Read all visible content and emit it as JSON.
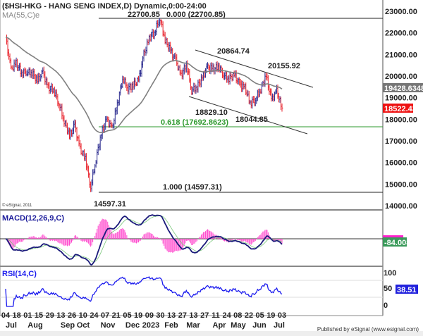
{
  "header": {
    "title": "($HSI-HKG - HANG SENG INDEX,D) Dynamic,0:00-24:00",
    "ma_label": "MA(55,C)e"
  },
  "annotations": {
    "fib_0": "22700.85   0.000 (22700.85)",
    "fib_618": "0.618 (17692.8623)",
    "fib_1": "1.000 (14597.31)",
    "high_label": "20864.74",
    "high2_label": "20155.92",
    "low1_label": "18829.10",
    "low2_label": "18044.85",
    "bottom_label": "14597.31",
    "copyright": "© eSignal, 2011"
  },
  "price_axis": {
    "ticks": [
      "23000.00",
      "22000.00",
      "21000.00",
      "20000.00",
      "19000.00",
      "18000.00",
      "17000.00",
      "16000.00",
      "15000.00",
      "14000.00"
    ],
    "ma_tag": "19428.6348",
    "last_tag": "18522.43"
  },
  "macd": {
    "label": "MACD(12,26,9,C)",
    "value_tag": "-84.008"
  },
  "rsi": {
    "label": "RSI(14,C)",
    "ticks": [
      "100",
      "50",
      "0"
    ],
    "value_tag": "38.51"
  },
  "x_axis": {
    "day_labels": [
      "04",
      "18",
      "01",
      "15",
      "29",
      "13",
      "26",
      "10",
      "24",
      "07",
      "21",
      "05",
      "19",
      "09",
      "30",
      "13",
      "27",
      "13",
      "27",
      "11",
      "24",
      "08",
      "22",
      "05",
      "19",
      "03"
    ],
    "month_labels": [
      "Jul",
      "Aug",
      "Sep",
      "Oct",
      "Nov",
      "Dec",
      "2023",
      "Feb",
      "Mar",
      "Apr",
      "May",
      "Jun",
      "Jul"
    ]
  },
  "footer": {
    "published": "Published by eSignal (www.esignal.com)"
  },
  "colors": {
    "up": "#2b2b8f",
    "down": "#e8202a",
    "ma": "#808080",
    "fib618": "#2e9a2e",
    "macd": "#1a1a7a",
    "hist": "#ff44cc",
    "rsi": "#1a1aee",
    "last_tag": "#ee1111"
  },
  "chart_data": {
    "type": "ohlc",
    "title": "($HSI-HKG - HANG SENG INDEX,D) Dynamic,0:00-24:00",
    "ylim": [
      14000,
      23400
    ],
    "x": [
      "2022-07-04",
      "2022-07-11",
      "2022-07-18",
      "2022-07-25",
      "2022-08-01",
      "2022-08-08",
      "2022-08-15",
      "2022-08-22",
      "2022-08-29",
      "2022-09-05",
      "2022-09-12",
      "2022-09-19",
      "2022-09-26",
      "2022-10-03",
      "2022-10-10",
      "2022-10-17",
      "2022-10-24",
      "2022-10-31",
      "2022-11-07",
      "2022-11-14",
      "2022-11-21",
      "2022-11-28",
      "2022-12-05",
      "2022-12-12",
      "2022-12-19",
      "2022-12-26",
      "2023-01-02",
      "2023-01-09",
      "2023-01-16",
      "2023-01-23",
      "2023-01-30",
      "2023-02-06",
      "2023-02-13",
      "2023-02-20",
      "2023-02-27",
      "2023-03-06",
      "2023-03-13",
      "2023-03-20",
      "2023-03-27",
      "2023-04-03",
      "2023-04-10",
      "2023-04-17",
      "2023-04-24",
      "2023-05-01",
      "2023-05-08",
      "2023-05-15",
      "2023-05-22",
      "2023-05-29",
      "2023-06-05",
      "2023-06-12",
      "2023-06-19",
      "2023-06-26",
      "2023-07-03"
    ],
    "close": [
      21800,
      20300,
      20600,
      20150,
      20200,
      20170,
      19770,
      20170,
      19450,
      19360,
      18760,
      17930,
      17220,
      17740,
      16590,
      16210,
      14860,
      16160,
      17330,
      17990,
      17570,
      18680,
      19900,
      19450,
      19590,
      19780,
      20990,
      21740,
      22040,
      22690,
      21660,
      21190,
      20720,
      20010,
      20570,
      19320,
      19520,
      19920,
      20400,
      20330,
      20440,
      20080,
      19890,
      20050,
      19630,
      19450,
      18750,
      18950,
      19390,
      20040,
      18890,
      19300,
      18522
    ],
    "overlays": [
      "MA(55,C)e"
    ],
    "fibonacci": [
      {
        "level": 0.0,
        "value": 22700.85
      },
      {
        "level": 0.618,
        "value": 17692.8623
      },
      {
        "level": 1.0,
        "value": 14597.31
      }
    ],
    "marked_points": [
      22700.85,
      20864.74,
      20155.92,
      18829.1,
      18044.85,
      14597.31
    ]
  }
}
